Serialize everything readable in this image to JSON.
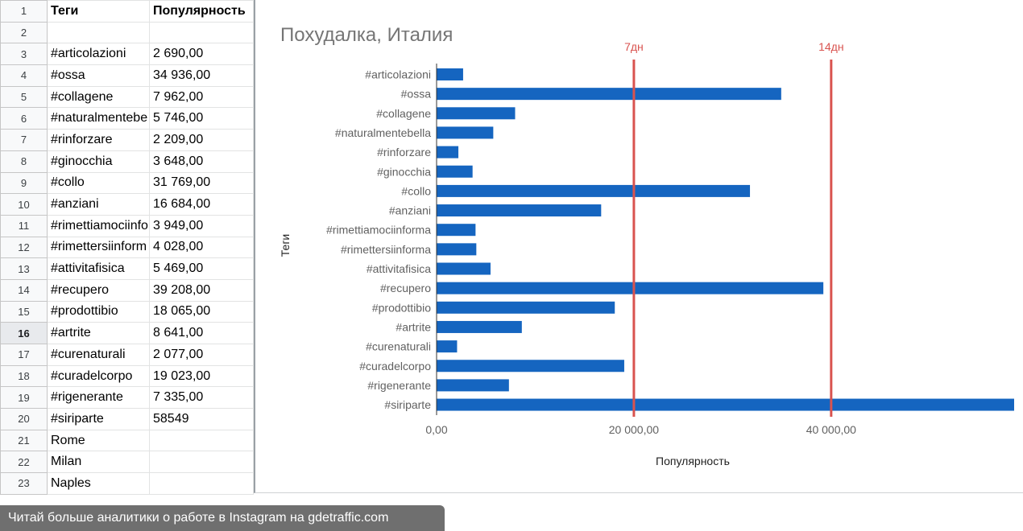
{
  "sheet": {
    "rows": [
      {
        "n": "1",
        "a": "Теги",
        "b": "Популярность",
        "header": true
      },
      {
        "n": "2",
        "a": "",
        "b": ""
      },
      {
        "n": "3",
        "a": "#articolazioni",
        "b": "2 690,00"
      },
      {
        "n": "4",
        "a": "#ossa",
        "b": "34 936,00"
      },
      {
        "n": "5",
        "a": "#collagene",
        "b": "7 962,00"
      },
      {
        "n": "6",
        "a": "#naturalmentebe",
        "b": "5 746,00"
      },
      {
        "n": "7",
        "a": "#rinforzare",
        "b": "2 209,00"
      },
      {
        "n": "8",
        "a": "#ginocchia",
        "b": "3 648,00"
      },
      {
        "n": "9",
        "a": "#collo",
        "b": "31 769,00"
      },
      {
        "n": "10",
        "a": "#anziani",
        "b": "16 684,00"
      },
      {
        "n": "11",
        "a": "#rimettiamociinfo",
        "b": "3 949,00"
      },
      {
        "n": "12",
        "a": "#rimettersiinform",
        "b": "4 028,00"
      },
      {
        "n": "13",
        "a": "#attivitafisica",
        "b": "5 469,00"
      },
      {
        "n": "14",
        "a": "#recupero",
        "b": "39 208,00"
      },
      {
        "n": "15",
        "a": "#prodottibio",
        "b": "18 065,00"
      },
      {
        "n": "16",
        "a": "#artrite",
        "b": "8 641,00",
        "selected": true
      },
      {
        "n": "17",
        "a": "#curenaturali",
        "b": "2 077,00"
      },
      {
        "n": "18",
        "a": "#curadelcorpo",
        "b": "19 023,00"
      },
      {
        "n": "19",
        "a": "#rigenerante",
        "b": "7 335,00"
      },
      {
        "n": "20",
        "a": "#siriparte",
        "b": "58549"
      },
      {
        "n": "21",
        "a": "Rome",
        "b": ""
      },
      {
        "n": "22",
        "a": "Milan",
        "b": ""
      },
      {
        "n": "23",
        "a": "Naples",
        "b": ""
      }
    ]
  },
  "chart_data": {
    "type": "bar",
    "orientation": "horizontal",
    "title": "Похудалка, Италия",
    "xlabel": "Популярность",
    "ylabel": "Теги",
    "categories": [
      "#articolazioni",
      "#ossa",
      "#collagene",
      "#naturalmentebella",
      "#rinforzare",
      "#ginocchia",
      "#collo",
      "#anziani",
      "#rimettiamociinforma",
      "#rimettersiinforma",
      "#attivitafisica",
      "#recupero",
      "#prodottibio",
      "#artrite",
      "#curenaturali",
      "#curadelcorpo",
      "#rigenerante",
      "#siriparte"
    ],
    "values": [
      2690,
      34936,
      7962,
      5746,
      2209,
      3648,
      31769,
      16684,
      3949,
      4028,
      5469,
      39208,
      18065,
      8641,
      2077,
      19023,
      7335,
      58549
    ],
    "xlim": [
      0,
      58549
    ],
    "xticks": [
      0,
      20000,
      40000
    ],
    "xtick_labels": [
      "0,00",
      "20 000,00",
      "40 000,00"
    ],
    "reference_lines": [
      {
        "value": 20000,
        "label": "7дн"
      },
      {
        "value": 40000,
        "label": "14дн"
      }
    ],
    "bar_color": "#1565c0",
    "line_color": "#d9534f",
    "grid": false
  },
  "banner": {
    "text": "Читай больше аналитики о работе в Instagram на gdetraffic.com"
  }
}
